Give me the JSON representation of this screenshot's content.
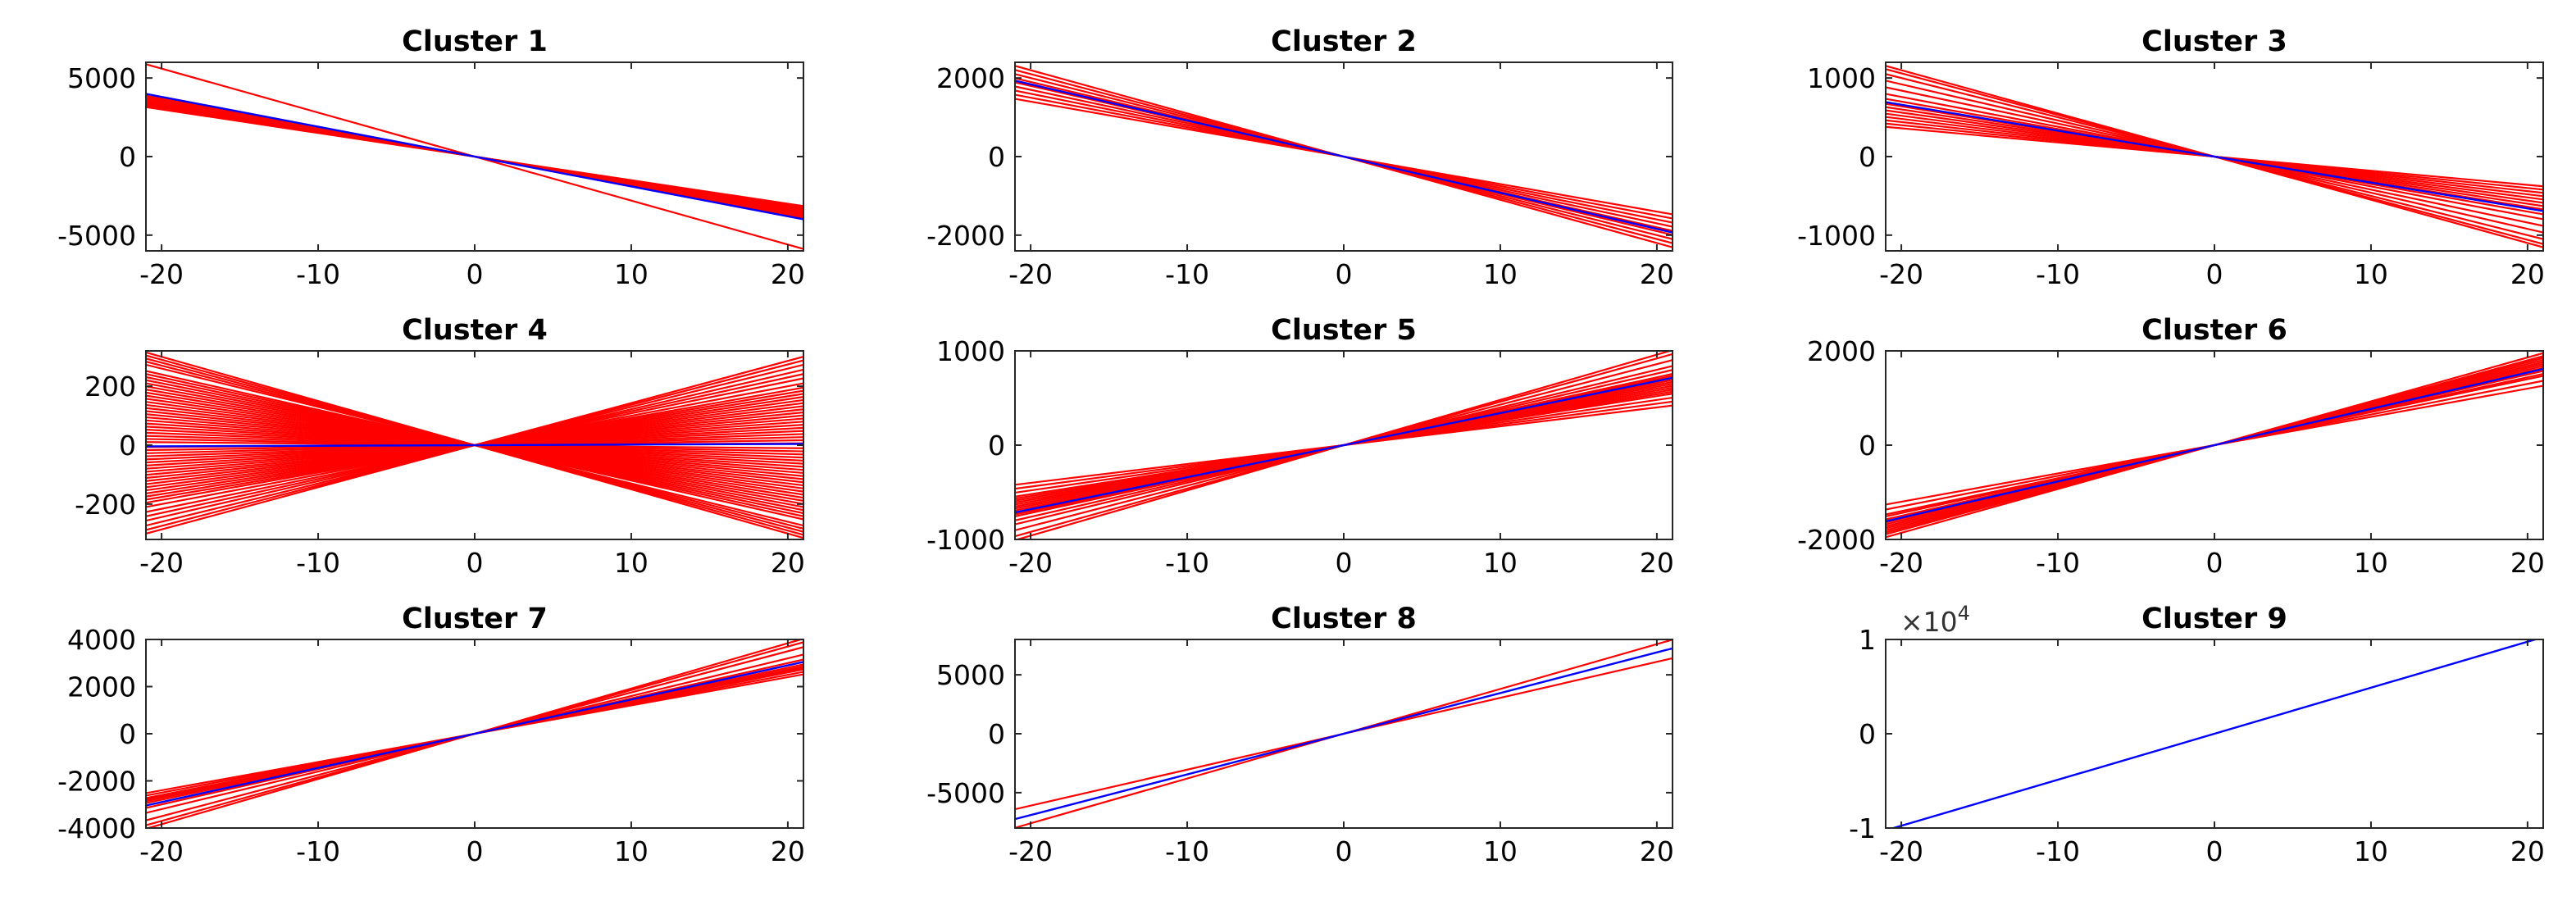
{
  "colors": {
    "member": "#ff0000",
    "centroid": "#0000ff",
    "axes": "#262626"
  },
  "chart_data": [
    {
      "type": "line",
      "title": "Cluster 1",
      "xlabel": "",
      "ylabel": "",
      "xlim": [
        -21,
        21
      ],
      "ylim": [
        -6000,
        6000
      ],
      "xticks": [
        -20,
        -10,
        0,
        10,
        20
      ],
      "xtick_labels": [
        "-20",
        "-10",
        "0",
        "10",
        "20"
      ],
      "yticks": [
        -5000,
        0,
        5000
      ],
      "ytick_labels": [
        "-5000",
        "0",
        "5000"
      ],
      "grid": false,
      "member_slopes": [
        -150,
        -155,
        -160,
        -165,
        -170,
        -175,
        -180,
        -185,
        -190,
        -280
      ],
      "centroid_slope": -190
    },
    {
      "type": "line",
      "title": "Cluster 2",
      "xlabel": "",
      "ylabel": "",
      "xlim": [
        -21,
        21
      ],
      "ylim": [
        -2400,
        2400
      ],
      "xticks": [
        -20,
        -10,
        0,
        10,
        20
      ],
      "xtick_labels": [
        "-20",
        "-10",
        "0",
        "10",
        "20"
      ],
      "yticks": [
        -2000,
        0,
        2000
      ],
      "ytick_labels": [
        "-2000",
        "0",
        "2000"
      ],
      "grid": false,
      "member_slopes": [
        -70,
        -75,
        -80,
        -85,
        -90,
        -92,
        -95,
        -100,
        -105,
        -110
      ],
      "centroid_slope": -92
    },
    {
      "type": "line",
      "title": "Cluster 3",
      "xlabel": "",
      "ylabel": "",
      "xlim": [
        -21,
        21
      ],
      "ylim": [
        -1200,
        1200
      ],
      "xticks": [
        -20,
        -10,
        0,
        10,
        20
      ],
      "xtick_labels": [
        "-20",
        "-10",
        "0",
        "10",
        "20"
      ],
      "yticks": [
        -1000,
        0,
        1000
      ],
      "ytick_labels": [
        "-1000",
        "0",
        "1000"
      ],
      "grid": false,
      "member_slopes": [
        -18,
        -20,
        -22,
        -24,
        -26,
        -28,
        -30,
        -32,
        -35,
        -38,
        -42,
        -46,
        -50,
        -53,
        -55
      ],
      "centroid_slope": -33
    },
    {
      "type": "line",
      "title": "Cluster 4",
      "xlabel": "",
      "ylabel": "",
      "xlim": [
        -21,
        21
      ],
      "ylim": [
        -320,
        320
      ],
      "xticks": [
        -20,
        -10,
        0,
        10,
        20
      ],
      "xtick_labels": [
        "-20",
        "-10",
        "0",
        "10",
        "20"
      ],
      "yticks": [
        -200,
        0,
        200
      ],
      "ytick_labels": [
        "-200",
        "0",
        "200"
      ],
      "grid": false,
      "member_slopes": [
        -15,
        -14.5,
        -14,
        -13.5,
        -13,
        -12,
        -11.5,
        -11,
        -10.5,
        -10,
        -9.5,
        -9,
        -8.5,
        -8,
        -7.5,
        -7,
        -6.5,
        -6,
        -5.5,
        -5,
        -4.5,
        -4,
        -3.5,
        -3,
        -2.5,
        -2,
        -1.5,
        -1,
        -0.5,
        0.3,
        0.8,
        1.3,
        1.8,
        2.3,
        2.8,
        3.3,
        3.8,
        4.3,
        4.8,
        5.3,
        5.8,
        6.3,
        6.8,
        7.3,
        7.8,
        8.3,
        8.8,
        9.3,
        10,
        10.8,
        11.5,
        12.2,
        13,
        13.7,
        14.3
      ],
      "centroid_slope": 0.2
    },
    {
      "type": "line",
      "title": "Cluster 5",
      "xlabel": "",
      "ylabel": "",
      "xlim": [
        -21,
        21
      ],
      "ylim": [
        -1000,
        1000
      ],
      "xticks": [
        -20,
        -10,
        0,
        10,
        20
      ],
      "xtick_labels": [
        "-20",
        "-10",
        "0",
        "10",
        "20"
      ],
      "yticks": [
        -1000,
        0,
        1000
      ],
      "ytick_labels": [
        "-1000",
        "0",
        "1000"
      ],
      "grid": false,
      "member_slopes": [
        20,
        22,
        24,
        26,
        27,
        28,
        29,
        30,
        31,
        32,
        33,
        34,
        35,
        36,
        38,
        40,
        43,
        46,
        48
      ],
      "centroid_slope": 34
    },
    {
      "type": "line",
      "title": "Cluster 6",
      "xlabel": "",
      "ylabel": "",
      "xlim": [
        -21,
        21
      ],
      "ylim": [
        -2000,
        2000
      ],
      "xticks": [
        -20,
        -10,
        0,
        10,
        20
      ],
      "xtick_labels": [
        "-20",
        "-10",
        "0",
        "10",
        "20"
      ],
      "yticks": [
        -2000,
        0,
        2000
      ],
      "ytick_labels": [
        "-2000",
        "0",
        "2000"
      ],
      "grid": false,
      "member_slopes": [
        60,
        65,
        70,
        72,
        75,
        78,
        80,
        82,
        84,
        86,
        88,
        90,
        93
      ],
      "centroid_slope": 77
    },
    {
      "type": "line",
      "title": "Cluster 7",
      "xlabel": "",
      "ylabel": "",
      "xlim": [
        -21,
        21
      ],
      "ylim": [
        -4000,
        4000
      ],
      "xticks": [
        -20,
        -10,
        0,
        10,
        20
      ],
      "xtick_labels": [
        "-20",
        "-10",
        "0",
        "10",
        "20"
      ],
      "yticks": [
        -4000,
        -2000,
        0,
        2000,
        4000
      ],
      "ytick_labels": [
        "-4000",
        "-2000",
        "0",
        "2000",
        "4000"
      ],
      "grid": false,
      "member_slopes": [
        120,
        125,
        130,
        133,
        136,
        140,
        145,
        150,
        160,
        175,
        185,
        192
      ],
      "centroid_slope": 145
    },
    {
      "type": "line",
      "title": "Cluster 8",
      "xlabel": "",
      "ylabel": "",
      "xlim": [
        -21,
        21
      ],
      "ylim": [
        -8000,
        8000
      ],
      "xticks": [
        -20,
        -10,
        0,
        10,
        20
      ],
      "xtick_labels": [
        "-20",
        "-10",
        "0",
        "10",
        "20"
      ],
      "yticks": [
        -5000,
        0,
        5000
      ],
      "ytick_labels": [
        "-5000",
        "0",
        "5000"
      ],
      "grid": false,
      "member_slopes": [
        305,
        380
      ],
      "centroid_slope": 345
    },
    {
      "type": "line",
      "title": "Cluster 9",
      "xlabel": "",
      "ylabel": "",
      "xlim": [
        -21,
        21
      ],
      "ylim": [
        -1,
        1
      ],
      "y_exponent_label": "×10",
      "y_exponent_power": "4",
      "xticks": [
        -20,
        -10,
        0,
        10,
        20
      ],
      "xtick_labels": [
        "-20",
        "-10",
        "0",
        "10",
        "20"
      ],
      "yticks": [
        -1,
        0,
        1
      ],
      "ytick_labels": [
        "-1",
        "0",
        "1"
      ],
      "grid": false,
      "member_slopes": [],
      "centroid_slope": 0.0488
    }
  ]
}
